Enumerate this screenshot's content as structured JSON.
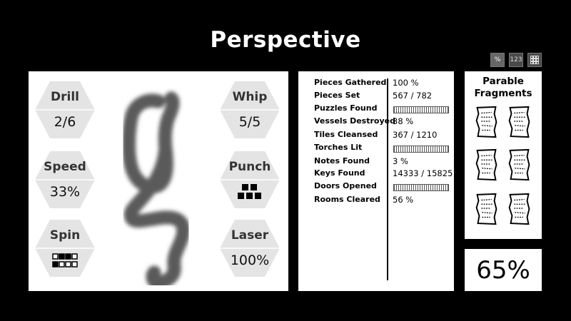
{
  "header": {
    "title": "Perspective"
  },
  "view_buttons": [
    {
      "label": "%",
      "active": true
    },
    {
      "label": "123",
      "active": false
    },
    {
      "label": "⦻",
      "active": false
    }
  ],
  "abilities": [
    {
      "name": "Drill",
      "value": "2/6"
    },
    {
      "name": "Speed",
      "value": "33%"
    },
    {
      "name": "Spin",
      "value": "",
      "icon": "grid-blocks-icon"
    },
    {
      "name": "Whip",
      "value": "5/5"
    },
    {
      "name": "Punch",
      "value": "",
      "icon": "stacked-blocks-icon"
    },
    {
      "name": "Laser",
      "value": "100%"
    }
  ],
  "center_glyph": {
    "icon": "scribble-glyph-icon"
  },
  "stats": [
    {
      "label": "Pieces Gathered",
      "value": "100 %"
    },
    {
      "label": "Pieces Set",
      "value": "567 / 782"
    },
    {
      "label": "Puzzles Found",
      "value": "",
      "hidden": true
    },
    {
      "label": "Vessels Destroyed",
      "value": "38 %"
    },
    {
      "label": "Tiles Cleansed",
      "value": "367 / 1210"
    },
    {
      "label": "Torches Lit",
      "value": "",
      "hidden": true
    },
    {
      "label": "Notes Found",
      "value": "3 %"
    },
    {
      "label": "Keys Found",
      "value": "14333 / 15825"
    },
    {
      "label": "Doors Opened",
      "value": "",
      "hidden": true
    },
    {
      "label": "Rooms Cleared",
      "value": "56 %"
    }
  ],
  "fragments": {
    "title_line1": "Parable",
    "title_line2": "Fragments",
    "count": 6,
    "icon": "scroll-fragment-icon"
  },
  "completion": {
    "value": "65%"
  },
  "colors": {
    "background": "#000000",
    "panel": "#ffffff",
    "hex": "#e4e4e4",
    "glyph": "#5a5a5a"
  }
}
